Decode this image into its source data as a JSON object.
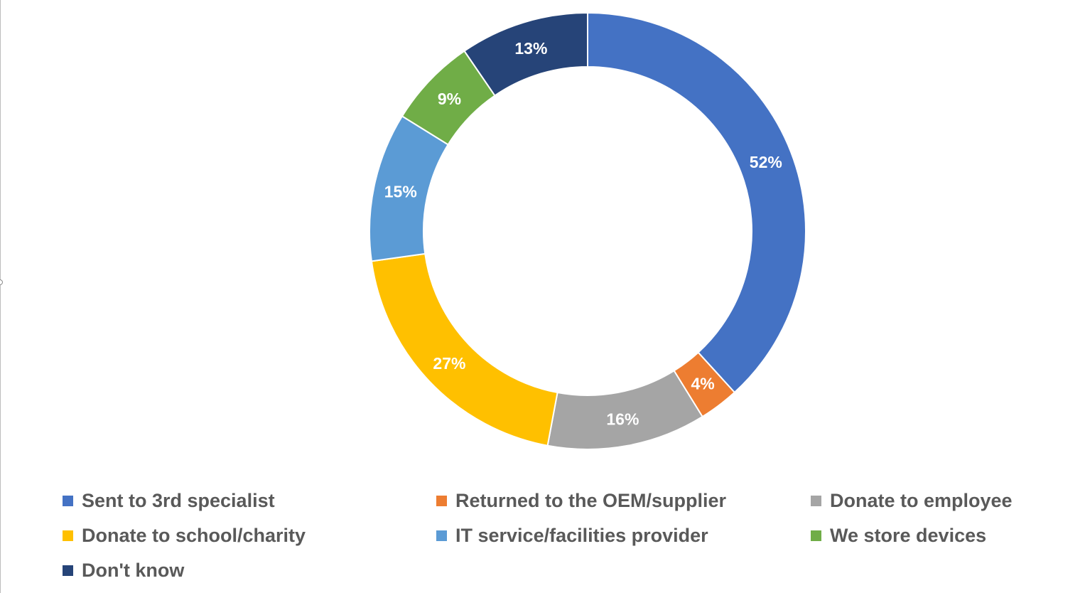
{
  "chart_data": {
    "type": "pie",
    "donut": true,
    "title": "",
    "legend_position": "bottom",
    "label_color": "#ffffff",
    "categories": [
      "Sent to 3rd specialist",
      "Returned to the OEM/supplier",
      "Donate to employee",
      "Donate to school/charity",
      "IT service/facilities provider",
      "We store devices",
      "Don't know"
    ],
    "values": [
      52,
      4,
      16,
      27,
      15,
      9,
      13
    ],
    "value_labels": [
      "52%",
      "4%",
      "16%",
      "27%",
      "15%",
      "9%",
      "13%"
    ],
    "colors": [
      "#4472C4",
      "#ED7D31",
      "#A5A5A5",
      "#FFC000",
      "#5B9BD5",
      "#70AD47",
      "#264478"
    ]
  }
}
